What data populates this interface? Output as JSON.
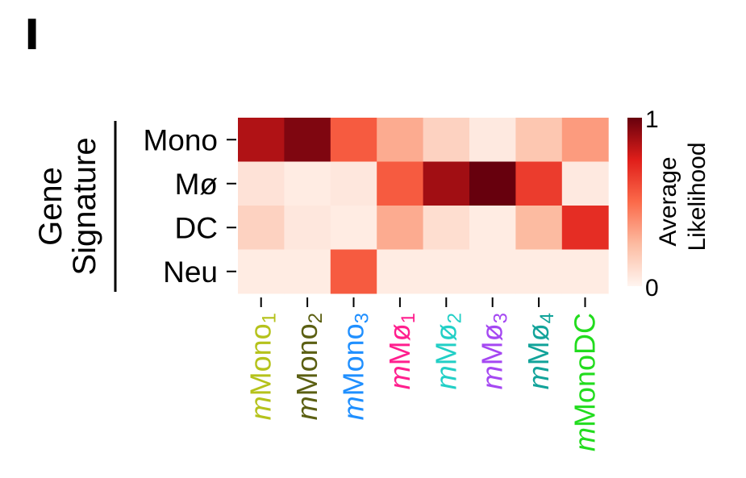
{
  "panel_label": "I",
  "chart_data": {
    "type": "heatmap",
    "title": "",
    "rows_axis_label_line1": "Gene",
    "rows_axis_label_line2": "Signature",
    "rows": [
      "Mono",
      "Mø",
      "DC",
      "Neu"
    ],
    "columns": [
      {
        "base": "mMono",
        "sub": "1",
        "color": "#b5c21b"
      },
      {
        "base": "mMono",
        "sub": "2",
        "color": "#5b5f12"
      },
      {
        "base": "mMono",
        "sub": "3",
        "color": "#1f8fff"
      },
      {
        "base": "mMø",
        "sub": "1",
        "color": "#ff1f8e"
      },
      {
        "base": "mMø",
        "sub": "2",
        "color": "#22cfc6"
      },
      {
        "base": "mMø",
        "sub": "3",
        "color": "#a548f2"
      },
      {
        "base": "mMø",
        "sub": "4",
        "color": "#12a39a"
      },
      {
        "base": "mMonoDC",
        "sub": "",
        "color": "#22dc1e"
      }
    ],
    "values": [
      [
        0.85,
        0.95,
        0.55,
        0.3,
        0.15,
        0.05,
        0.2,
        0.35
      ],
      [
        0.08,
        0.04,
        0.06,
        0.55,
        0.88,
        1.0,
        0.65,
        0.05
      ],
      [
        0.15,
        0.06,
        0.04,
        0.3,
        0.1,
        0.04,
        0.25,
        0.7
      ],
      [
        0.04,
        0.04,
        0.55,
        0.04,
        0.04,
        0.04,
        0.04,
        0.04
      ]
    ],
    "colorbar": {
      "label_line1": "Average",
      "label_line2": "Likelihood",
      "min": 0,
      "max": 1,
      "min_label": "0",
      "max_label": "1",
      "colormap": "Reds"
    }
  }
}
